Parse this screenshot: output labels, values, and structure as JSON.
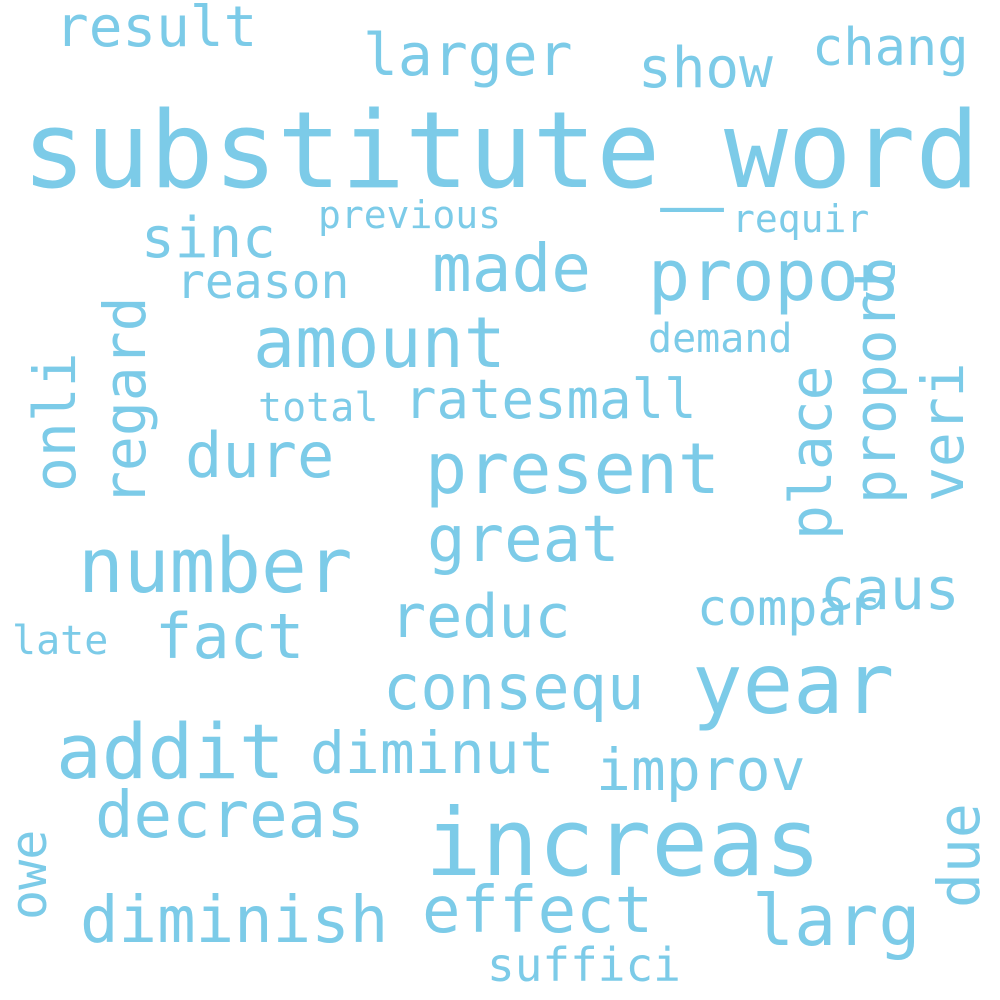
{
  "color": "#7ccbe8",
  "words": [
    "substitute_word",
    "increas",
    "year",
    "number",
    "addit",
    "present",
    "amount",
    "propos",
    "larg",
    "made",
    "great",
    "effect",
    "diminish",
    "decreas",
    "consequ",
    "reduc",
    "fact",
    "dure",
    "diminut",
    "improv",
    "caus",
    "larger",
    "show",
    "result",
    "chang",
    "sinc",
    "reason",
    "ratesmall",
    "regard",
    "compar",
    "onli",
    "place",
    "proport",
    "veri",
    "due",
    "suffici",
    "previous",
    "requir",
    "demand",
    "total",
    "late",
    "owe"
  ]
}
